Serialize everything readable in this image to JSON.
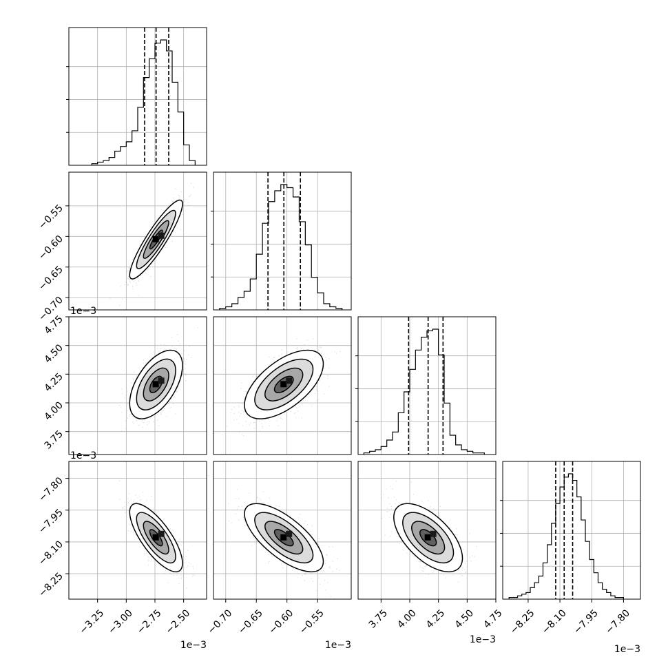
{
  "chart_data": {
    "type": "corner",
    "grid": true,
    "n_params": 4,
    "parameters": [
      {
        "range": [
          -3.5,
          -2.3
        ],
        "ticks": [
          -3.25,
          -3.0,
          -2.75,
          -2.5
        ],
        "tick_labels": [
          "−3.25",
          "−3.00",
          "−2.75",
          "−2.50"
        ],
        "scale_label": "1e−3",
        "quantiles": [
          -2.84,
          -2.74,
          -2.63
        ],
        "hist": {
          "bin_edges": [
            -3.3,
            -3.25,
            -3.2,
            -3.15,
            -3.1,
            -3.05,
            -3.0,
            -2.95,
            -2.9,
            -2.85,
            -2.8,
            -2.75,
            -2.7,
            -2.65,
            -2.6,
            -2.55,
            -2.5,
            -2.45,
            -2.4
          ],
          "counts": [
            1,
            2,
            3,
            5,
            9,
            12,
            15,
            22,
            37,
            56,
            68,
            78,
            80,
            73,
            53,
            34,
            13,
            3
          ]
        }
      },
      {
        "range": [
          -0.72,
          -0.495
        ],
        "ticks": [
          -0.7,
          -0.65,
          -0.6,
          -0.55
        ],
        "tick_labels": [
          "−0.70",
          "−0.65",
          "−0.60",
          "−0.55"
        ],
        "scale_label": "1e−3",
        "quantiles": [
          -0.631,
          -0.605,
          -0.578
        ],
        "hist": {
          "bin_edges": [
            -0.71,
            -0.7,
            -0.69,
            -0.68,
            -0.67,
            -0.66,
            -0.65,
            -0.64,
            -0.63,
            -0.62,
            -0.61,
            -0.6,
            -0.59,
            -0.58,
            -0.57,
            -0.56,
            -0.55,
            -0.54,
            -0.53,
            -0.52,
            -0.51
          ],
          "counts": [
            1,
            2,
            4,
            8,
            12,
            20,
            36,
            56,
            70,
            77,
            81,
            79,
            73,
            57,
            42,
            21,
            11,
            4,
            2,
            1
          ]
        }
      },
      {
        "range": [
          3.55,
          4.75
        ],
        "ticks": [
          3.75,
          4.0,
          4.25,
          4.5,
          4.75
        ],
        "tick_labels": [
          "3.75",
          "4.00",
          "4.25",
          "4.50",
          "4.75"
        ],
        "scale_label": "1e−3",
        "quantiles": [
          3.99,
          4.16,
          4.29
        ],
        "hist": {
          "bin_edges": [
            3.6,
            3.65,
            3.7,
            3.75,
            3.8,
            3.85,
            3.9,
            3.95,
            4.0,
            4.05,
            4.1,
            4.15,
            4.2,
            4.25,
            4.3,
            4.35,
            4.4,
            4.45,
            4.5,
            4.55,
            4.6,
            4.65
          ],
          "counts": [
            1,
            2,
            3,
            5,
            9,
            14,
            26,
            39,
            53,
            65,
            73,
            77,
            78,
            62,
            32,
            12,
            6,
            3,
            2,
            1,
            1
          ]
        }
      },
      {
        "range": [
          -8.37,
          -7.72
        ],
        "ticks": [
          -8.25,
          -8.1,
          -7.95,
          -7.8
        ],
        "tick_labels": [
          "−8.25",
          "−8.10",
          "−7.95",
          "−7.80"
        ],
        "scale_label": "1e−3",
        "quantiles": [
          -8.12,
          -8.08,
          -8.04
        ],
        "hist": {
          "bin_edges": [
            -8.34,
            -8.32,
            -8.3,
            -8.28,
            -8.26,
            -8.24,
            -8.22,
            -8.2,
            -8.18,
            -8.16,
            -8.14,
            -8.12,
            -8.1,
            -8.08,
            -8.06,
            -8.04,
            -8.02,
            -8.0,
            -7.98,
            -7.96,
            -7.94,
            -7.92,
            -7.9,
            -7.88,
            -7.86,
            -7.84,
            -7.82,
            -7.8
          ],
          "counts": [
            1,
            1,
            2,
            3,
            4,
            7,
            10,
            14,
            22,
            33,
            46,
            58,
            68,
            74,
            76,
            72,
            62,
            48,
            35,
            24,
            16,
            10,
            6,
            4,
            2,
            1,
            1
          ]
        }
      }
    ],
    "pairs": [
      {
        "i": 1,
        "j": 0,
        "mean": [
          -2.74,
          -0.605
        ],
        "sd": [
          0.1,
          0.028
        ],
        "corr": 0.9
      },
      {
        "i": 2,
        "j": 0,
        "mean": [
          -2.74,
          4.16
        ],
        "sd": [
          0.1,
          0.13
        ],
        "corr": 0.55
      },
      {
        "i": 2,
        "j": 1,
        "mean": [
          -0.605,
          4.16
        ],
        "sd": [
          0.028,
          0.13
        ],
        "corr": 0.6
      },
      {
        "i": 3,
        "j": 0,
        "mean": [
          -2.74,
          -8.08
        ],
        "sd": [
          0.1,
          0.07
        ],
        "corr": -0.75
      },
      {
        "i": 3,
        "j": 1,
        "mean": [
          -0.605,
          -8.08
        ],
        "sd": [
          0.028,
          0.07
        ],
        "corr": -0.7
      },
      {
        "i": 3,
        "j": 2,
        "mean": [
          4.16,
          -8.08
        ],
        "sd": [
          0.13,
          0.07
        ],
        "corr": -0.6
      }
    ]
  }
}
